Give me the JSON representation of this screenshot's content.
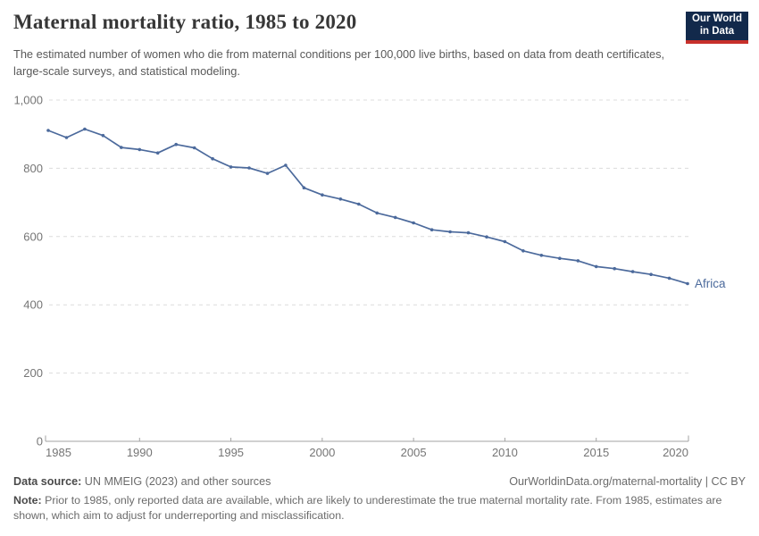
{
  "header": {
    "title": "Maternal mortality ratio, 1985 to 2020",
    "subtitle": "The estimated number of women who die from maternal conditions per 100,000 live births, based on data from death certificates, large-scale surveys, and statistical modeling."
  },
  "logo": {
    "line1": "Our World",
    "line2": "in Data",
    "bg_color": "#12294b",
    "accent_color": "#c7302b"
  },
  "chart_data": {
    "type": "line",
    "title": "Maternal mortality ratio, 1985 to 2020",
    "x": [
      1985,
      1986,
      1987,
      1988,
      1989,
      1990,
      1991,
      1992,
      1993,
      1994,
      1995,
      1996,
      1997,
      1998,
      1999,
      2000,
      2001,
      2002,
      2003,
      2004,
      2005,
      2006,
      2007,
      2008,
      2009,
      2010,
      2011,
      2012,
      2013,
      2014,
      2015,
      2016,
      2017,
      2018,
      2019,
      2020
    ],
    "series": [
      {
        "name": "Africa",
        "color": "#4C6A9C",
        "values": [
          911,
          890,
          915,
          896,
          861,
          855,
          845,
          870,
          860,
          828,
          804,
          801,
          785,
          809,
          743,
          722,
          710,
          695,
          669,
          656,
          640,
          620,
          614,
          611,
          599,
          585,
          558,
          545,
          536,
          529,
          512,
          506,
          497,
          489,
          478,
          462
        ]
      }
    ],
    "xlabel": "",
    "ylabel": "",
    "ylim": [
      0,
      1000
    ],
    "yticks": [
      0,
      200,
      400,
      600,
      800,
      1000
    ],
    "ytick_labels": [
      "0",
      "200",
      "400",
      "600",
      "800",
      "1,000"
    ],
    "xticks": [
      1985,
      1990,
      1995,
      2000,
      2005,
      2010,
      2015,
      2020
    ],
    "xtick_labels": [
      "1985",
      "1990",
      "1995",
      "2000",
      "2005",
      "2010",
      "2015",
      "2020"
    ],
    "grid": "horizontal-dashed",
    "legend_position": "end-of-line-label",
    "grid_color": "#dcdcdc",
    "axis_color": "#a3a3a3",
    "tick_label_color": "#757575"
  },
  "footer": {
    "source_label": "Data source:",
    "source_text": "UN MMEIG (2023) and other sources",
    "attribution": "OurWorldinData.org/maternal-mortality | CC BY",
    "note_label": "Note:",
    "note_text": "Prior to 1985, only reported data are available, which are likely to underestimate the true maternal mortality rate. From 1985, estimates are shown, which aim to adjust for underreporting and misclassification."
  }
}
